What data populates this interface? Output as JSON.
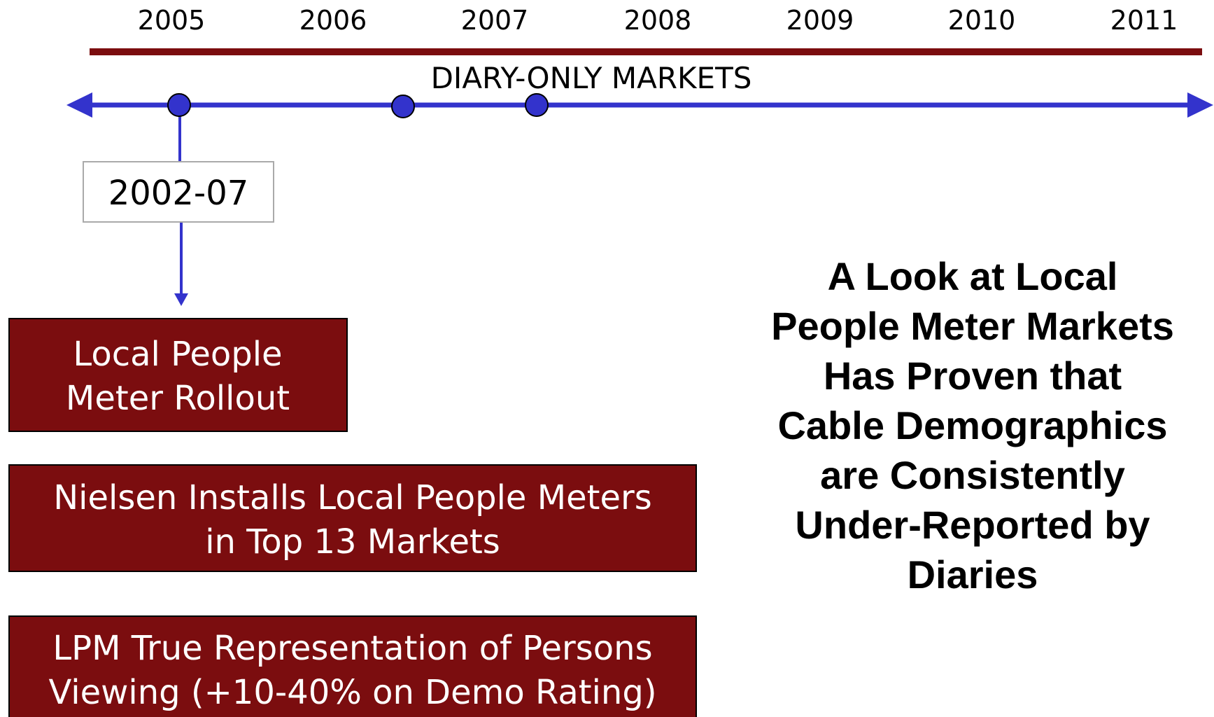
{
  "timeline": {
    "years": [
      "2005",
      "2006",
      "2007",
      "2008",
      "2009",
      "2010",
      "2011"
    ],
    "band_label": "DIARY-ONLY MARKETS",
    "milestone": "2002-07"
  },
  "boxes": [
    {
      "lines": [
        "Local People",
        "Meter Rollout"
      ]
    },
    {
      "lines": [
        "Nielsen Installs Local People Meters",
        "in Top 13 Markets"
      ]
    },
    {
      "lines": [
        "LPM True Representation of Persons",
        "Viewing (+10-40% on Demo Rating)"
      ]
    }
  ],
  "headline": {
    "lines": [
      "A Look at Local",
      "People Meter Markets",
      "Has Proven that",
      "Cable Demographics",
      "are Consistently",
      "Under-Reported by",
      "Diaries"
    ]
  }
}
